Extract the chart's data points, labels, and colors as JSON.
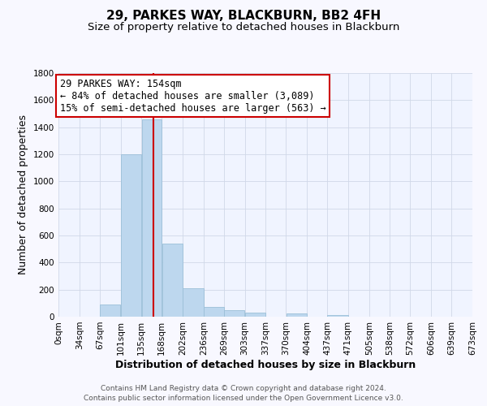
{
  "title": "29, PARKES WAY, BLACKBURN, BB2 4FH",
  "subtitle": "Size of property relative to detached houses in Blackburn",
  "xlabel": "Distribution of detached houses by size in Blackburn",
  "ylabel": "Number of detached properties",
  "footer_line1": "Contains HM Land Registry data © Crown copyright and database right 2024.",
  "footer_line2": "Contains public sector information licensed under the Open Government Licence v3.0.",
  "bar_edges": [
    0,
    34,
    67,
    101,
    135,
    168,
    202,
    236,
    269,
    303,
    337,
    370,
    404,
    437,
    471,
    505,
    538,
    572,
    606,
    639,
    673
  ],
  "bar_heights": [
    0,
    0,
    90,
    1200,
    1460,
    540,
    210,
    70,
    50,
    30,
    0,
    25,
    0,
    15,
    0,
    0,
    0,
    0,
    0,
    0
  ],
  "bar_color": "#bdd7ee",
  "bar_edgecolor": "#9bbfd8",
  "property_size": 154,
  "vline_color": "#cc0000",
  "annotation_line1": "29 PARKES WAY: 154sqm",
  "annotation_line2": "← 84% of detached houses are smaller (3,089)",
  "annotation_line3": "15% of semi-detached houses are larger (563) →",
  "annotation_box_edgecolor": "#cc0000",
  "annotation_box_facecolor": "#ffffff",
  "ylim": [
    0,
    1800
  ],
  "yticks": [
    0,
    200,
    400,
    600,
    800,
    1000,
    1200,
    1400,
    1600,
    1800
  ],
  "xtick_labels": [
    "0sqm",
    "34sqm",
    "67sqm",
    "101sqm",
    "135sqm",
    "168sqm",
    "202sqm",
    "236sqm",
    "269sqm",
    "303sqm",
    "337sqm",
    "370sqm",
    "404sqm",
    "437sqm",
    "471sqm",
    "505sqm",
    "538sqm",
    "572sqm",
    "606sqm",
    "639sqm",
    "673sqm"
  ],
  "background_color": "#f8f8ff",
  "plot_bg_color": "#f0f4ff",
  "grid_color": "#d0d8e8",
  "title_fontsize": 11,
  "subtitle_fontsize": 9.5,
  "axis_label_fontsize": 9,
  "tick_fontsize": 7.5,
  "annotation_fontsize": 8.5,
  "footer_fontsize": 6.5
}
